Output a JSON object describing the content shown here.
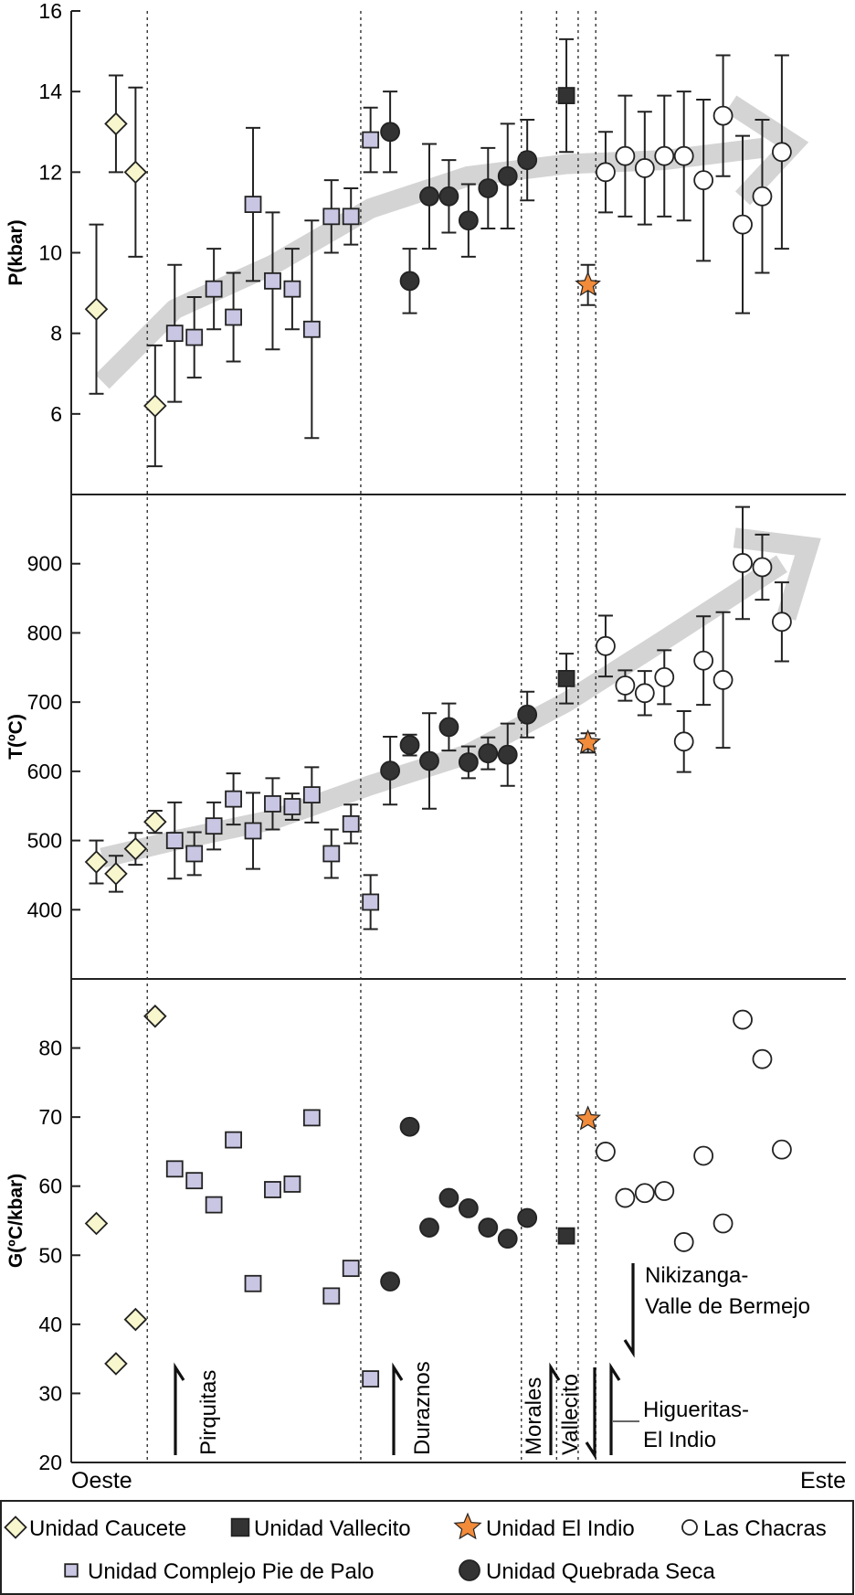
{
  "colors": {
    "caucete": "#f8f6cc",
    "complejo": "#c8c6e2",
    "quebrada": "#333333",
    "vallecito": "#333333",
    "elindio": "#f28b3a",
    "chacras": "#ffffff",
    "trend": "#d4d4d4",
    "axis": "#222222"
  },
  "x_axis": {
    "left_label": "Oeste",
    "right_label": "Este"
  },
  "legend": {
    "caucete": "Unidad Caucete",
    "vallecito": "Unidad Vallecito",
    "elindio": "Unidad El Indio",
    "chacras": "Las Chacras",
    "complejo": "Unidad Complejo Pie de Palo",
    "quebrada": "Unidad Quebrada Seca"
  },
  "faults": {
    "labels": {
      "pirquitas": "Pirquitas",
      "duraznos": "Duraznos",
      "morales": "Morales",
      "vallecito": "Vallecito",
      "nikizanga_1": "Nikizanga-",
      "nikizanga_2": "Valle de Bermejo",
      "higueritas_1": "Higueritas-",
      "higueritas_2": "El Indio"
    },
    "positions": [
      3.6,
      14.5,
      22.7,
      24.5,
      25.6,
      26.5
    ]
  },
  "chart_data": [
    {
      "type": "scatter",
      "panel": "P",
      "ylabel": "P(kbar)",
      "ylim": [
        4,
        16
      ],
      "yticks": [
        6,
        8,
        10,
        12,
        14,
        16
      ],
      "trend": [
        [
          1.3,
          6.8
        ],
        [
          5,
          8.6
        ],
        [
          10,
          9.7
        ],
        [
          15,
          11.1
        ],
        [
          20,
          11.9
        ],
        [
          25,
          12.2
        ],
        [
          30,
          12.3
        ],
        [
          35,
          12.6
        ]
      ],
      "series": [
        {
          "unit": "caucete",
          "marker": "diamond",
          "points": [
            [
              1,
              8.6,
              6.5,
              10.7
            ],
            [
              2,
              13.2,
              12,
              14.4
            ],
            [
              3,
              12,
              9.9,
              14.1
            ],
            [
              4,
              6.2,
              4.7,
              7.7
            ]
          ]
        },
        {
          "unit": "complejo",
          "marker": "square",
          "points": [
            [
              5,
              8,
              6.3,
              9.7
            ],
            [
              6,
              7.9,
              6.9,
              8.9
            ],
            [
              7,
              9.1,
              8.1,
              10.1
            ],
            [
              8,
              8.4,
              7.3,
              9.5
            ],
            [
              9,
              11.2,
              9.3,
              13.1
            ],
            [
              10,
              9.3,
              7.6,
              11
            ],
            [
              11,
              9.1,
              8.1,
              10.1
            ],
            [
              12,
              8.1,
              5.4,
              10.8
            ],
            [
              13,
              10.9,
              10,
              11.8
            ],
            [
              14,
              10.9,
              10.2,
              11.6
            ],
            [
              15,
              12.8,
              12,
              13.6
            ]
          ]
        },
        {
          "unit": "quebrada",
          "marker": "circle",
          "points": [
            [
              16,
              13,
              12,
              14
            ],
            [
              17,
              9.3,
              8.5,
              10.1
            ],
            [
              18,
              11.4,
              10.1,
              12.7
            ],
            [
              19,
              11.4,
              10.5,
              12.3
            ],
            [
              20,
              10.8,
              9.9,
              11.7
            ],
            [
              21,
              11.6,
              10.6,
              12.6
            ],
            [
              22,
              11.9,
              10.6,
              13.2
            ],
            [
              23,
              12.3,
              11.3,
              13.3
            ]
          ]
        },
        {
          "unit": "vallecito",
          "marker": "square",
          "points": [
            [
              25,
              13.9,
              12.5,
              15.3
            ]
          ]
        },
        {
          "unit": "elindio",
          "marker": "star",
          "points": [
            [
              26.1,
              9.2,
              8.7,
              9.7
            ]
          ]
        },
        {
          "unit": "chacras",
          "marker": "circle",
          "points": [
            [
              27,
              12,
              11,
              13
            ],
            [
              28,
              12.4,
              10.9,
              13.9
            ],
            [
              29,
              12.1,
              10.7,
              13.5
            ],
            [
              30,
              12.4,
              10.9,
              13.9
            ],
            [
              31,
              12.4,
              10.8,
              14
            ],
            [
              32,
              11.8,
              9.8,
              13.8
            ],
            [
              33,
              13.4,
              11.9,
              14.9
            ],
            [
              34,
              10.7,
              8.5,
              12.9
            ],
            [
              35,
              11.4,
              9.5,
              13.3
            ],
            [
              36,
              12.5,
              10.1,
              14.9
            ]
          ]
        }
      ]
    },
    {
      "type": "scatter",
      "panel": "T",
      "ylabel": "T(ºC)",
      "ylim": [
        300,
        1000
      ],
      "yticks": [
        400,
        500,
        600,
        700,
        800,
        900
      ],
      "trend": [
        [
          1.3,
          475
        ],
        [
          5,
          500
        ],
        [
          10,
          530
        ],
        [
          15,
          580
        ],
        [
          20,
          625
        ],
        [
          25,
          700
        ],
        [
          30,
          790
        ],
        [
          36,
          900
        ]
      ],
      "series": [
        {
          "unit": "caucete",
          "marker": "diamond",
          "points": [
            [
              1,
              469,
              438,
              500
            ],
            [
              2,
              452,
              426,
              478
            ],
            [
              3,
              488,
              465,
              511
            ],
            [
              4,
              527,
              511,
              543
            ]
          ]
        },
        {
          "unit": "complejo",
          "marker": "square",
          "points": [
            [
              5,
              500,
              445,
              555
            ],
            [
              6,
              481,
              450,
              512
            ],
            [
              7,
              521,
              487,
              555
            ],
            [
              8,
              560,
              523,
              597
            ],
            [
              9,
              514,
              459,
              569
            ],
            [
              10,
              553,
              516,
              590
            ],
            [
              11,
              549,
              530,
              568
            ],
            [
              12,
              566,
              526,
              606
            ],
            [
              13,
              481,
              446,
              516
            ],
            [
              14,
              524,
              496,
              552
            ],
            [
              15,
              411,
              372,
              450
            ]
          ]
        },
        {
          "unit": "quebrada",
          "marker": "circle",
          "points": [
            [
              16,
              601,
              552,
              650
            ],
            [
              17,
              638,
              623,
              653
            ],
            [
              18,
              615,
              546,
              684
            ],
            [
              19,
              664,
              630,
              698
            ],
            [
              20,
              613,
              590,
              636
            ],
            [
              21,
              626,
              603,
              649
            ],
            [
              22,
              624,
              579,
              669
            ],
            [
              23,
              682,
              649,
              715
            ]
          ]
        },
        {
          "unit": "vallecito",
          "marker": "square",
          "points": [
            [
              25,
              734,
              698,
              770
            ]
          ]
        },
        {
          "unit": "elindio",
          "marker": "star",
          "points": [
            [
              26.1,
              641,
              627,
              655
            ]
          ]
        },
        {
          "unit": "chacras",
          "marker": "circle",
          "points": [
            [
              27,
              781,
              737,
              825
            ],
            [
              28,
              724,
              702,
              746
            ],
            [
              29,
              713,
              681,
              745
            ],
            [
              30,
              736,
              697,
              775
            ],
            [
              31,
              643,
              599,
              687
            ],
            [
              32,
              760,
              696,
              824
            ],
            [
              33,
              732,
              634,
              830
            ],
            [
              34,
              901,
              820,
              982
            ],
            [
              35,
              895,
              848,
              942
            ],
            [
              36,
              816,
              759,
              873
            ]
          ]
        }
      ]
    },
    {
      "type": "scatter",
      "panel": "G",
      "ylabel": "G(ºC/kbar)",
      "ylim": [
        20,
        90
      ],
      "yticks": [
        20,
        30,
        40,
        50,
        60,
        70,
        80
      ],
      "series": [
        {
          "unit": "caucete",
          "marker": "diamond",
          "points": [
            [
              1,
              54.6
            ],
            [
              2,
              34.3
            ],
            [
              3,
              40.7
            ],
            [
              4,
              84.6
            ]
          ]
        },
        {
          "unit": "complejo",
          "marker": "square",
          "points": [
            [
              5,
              62.5
            ],
            [
              6,
              60.8
            ],
            [
              7,
              57.3
            ],
            [
              8,
              66.7
            ],
            [
              9,
              45.9
            ],
            [
              10,
              59.5
            ],
            [
              11,
              60.3
            ],
            [
              12,
              69.9
            ],
            [
              13,
              44.1
            ],
            [
              14,
              48.1
            ],
            [
              15,
              32.1
            ]
          ]
        },
        {
          "unit": "quebrada",
          "marker": "circle",
          "points": [
            [
              16,
              46.2
            ],
            [
              17,
              68.6
            ],
            [
              18,
              54
            ],
            [
              19,
              58.3
            ],
            [
              20,
              56.8
            ],
            [
              21,
              54
            ],
            [
              22,
              52.4
            ],
            [
              23,
              55.4
            ]
          ]
        },
        {
          "unit": "vallecito",
          "marker": "square",
          "points": [
            [
              25,
              52.8
            ]
          ]
        },
        {
          "unit": "elindio",
          "marker": "star",
          "points": [
            [
              26.1,
              69.7
            ]
          ]
        },
        {
          "unit": "chacras",
          "marker": "circle",
          "points": [
            [
              27,
              65
            ],
            [
              28,
              58.3
            ],
            [
              29,
              59
            ],
            [
              30,
              59.3
            ],
            [
              31,
              51.9
            ],
            [
              32,
              64.4
            ],
            [
              33,
              54.6
            ],
            [
              34,
              84.1
            ],
            [
              35,
              78.4
            ],
            [
              36,
              65.3
            ]
          ]
        }
      ]
    }
  ]
}
